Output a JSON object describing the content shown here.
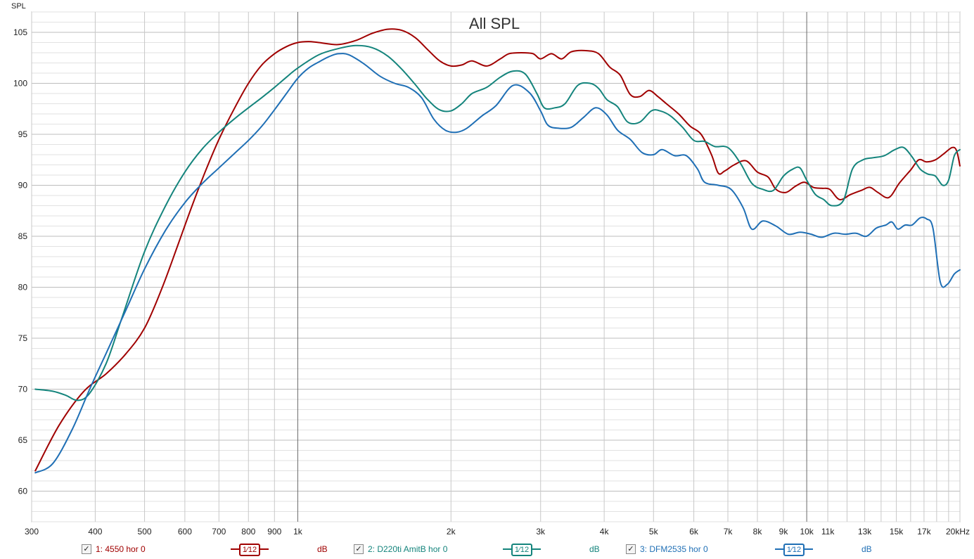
{
  "chart_data": {
    "type": "line",
    "title": "All SPL",
    "ylabel": "SPL",
    "xlabel": "",
    "x_scale": "log",
    "xlim": [
      300,
      20000
    ],
    "ylim": [
      57,
      107
    ],
    "grid": true,
    "y_ticks": [
      {
        "value": 60,
        "label": "60"
      },
      {
        "value": 65,
        "label": "65"
      },
      {
        "value": 70,
        "label": "70"
      },
      {
        "value": 75,
        "label": "75"
      },
      {
        "value": 80,
        "label": "80"
      },
      {
        "value": 85,
        "label": "85"
      },
      {
        "value": 90,
        "label": "90"
      },
      {
        "value": 95,
        "label": "95"
      },
      {
        "value": 100,
        "label": "100"
      },
      {
        "value": 105,
        "label": "105"
      }
    ],
    "x_ticks": [
      {
        "value": 300,
        "label": "300"
      },
      {
        "value": 400,
        "label": "400"
      },
      {
        "value": 500,
        "label": "500"
      },
      {
        "value": 600,
        "label": "600"
      },
      {
        "value": 700,
        "label": "700"
      },
      {
        "value": 800,
        "label": "800"
      },
      {
        "value": 900,
        "label": "900"
      },
      {
        "value": 1000,
        "label": "1k"
      },
      {
        "value": 2000,
        "label": "2k"
      },
      {
        "value": 3000,
        "label": "3k"
      },
      {
        "value": 4000,
        "label": "4k"
      },
      {
        "value": 5000,
        "label": "5k"
      },
      {
        "value": 6000,
        "label": "6k"
      },
      {
        "value": 7000,
        "label": "7k"
      },
      {
        "value": 8000,
        "label": "8k"
      },
      {
        "value": 9000,
        "label": "9k"
      },
      {
        "value": 10000,
        "label": "10k"
      },
      {
        "value": 11000,
        "label": "11k",
        "muted": true
      },
      {
        "value": 13000,
        "label": "13k",
        "muted": true
      },
      {
        "value": 15000,
        "label": "15k"
      },
      {
        "value": 17000,
        "label": "17k",
        "muted": true
      },
      {
        "value": 20000,
        "label": "20kHz"
      }
    ],
    "series": [
      {
        "name": "1: 4550 hor 0",
        "color": "#a00000",
        "points": [
          [
            305,
            62.0
          ],
          [
            340,
            66.5
          ],
          [
            380,
            69.8
          ],
          [
            420,
            71.5
          ],
          [
            460,
            73.5
          ],
          [
            500,
            76.0
          ],
          [
            540,
            79.8
          ],
          [
            580,
            84.0
          ],
          [
            620,
            88.0
          ],
          [
            660,
            91.5
          ],
          [
            700,
            94.5
          ],
          [
            750,
            97.5
          ],
          [
            800,
            100.0
          ],
          [
            850,
            101.8
          ],
          [
            900,
            102.9
          ],
          [
            950,
            103.6
          ],
          [
            1000,
            104.0
          ],
          [
            1050,
            104.1
          ],
          [
            1100,
            104.0
          ],
          [
            1200,
            103.8
          ],
          [
            1300,
            104.2
          ],
          [
            1400,
            104.9
          ],
          [
            1500,
            105.3
          ],
          [
            1600,
            105.2
          ],
          [
            1700,
            104.5
          ],
          [
            1800,
            103.3
          ],
          [
            1900,
            102.2
          ],
          [
            2000,
            101.7
          ],
          [
            2100,
            101.8
          ],
          [
            2200,
            102.2
          ],
          [
            2350,
            101.7
          ],
          [
            2500,
            102.4
          ],
          [
            2600,
            102.9
          ],
          [
            2750,
            103.0
          ],
          [
            2900,
            102.9
          ],
          [
            3000,
            102.4
          ],
          [
            3150,
            102.9
          ],
          [
            3300,
            102.4
          ],
          [
            3450,
            103.1
          ],
          [
            3700,
            103.2
          ],
          [
            3900,
            102.9
          ],
          [
            4100,
            101.6
          ],
          [
            4300,
            100.8
          ],
          [
            4500,
            98.9
          ],
          [
            4700,
            98.7
          ],
          [
            4900,
            99.3
          ],
          [
            5100,
            98.7
          ],
          [
            5300,
            98.0
          ],
          [
            5600,
            97.0
          ],
          [
            5900,
            95.8
          ],
          [
            6200,
            95.0
          ],
          [
            6500,
            93.0
          ],
          [
            6700,
            91.2
          ],
          [
            6900,
            91.4
          ],
          [
            7200,
            92.0
          ],
          [
            7600,
            92.4
          ],
          [
            8000,
            91.3
          ],
          [
            8400,
            90.8
          ],
          [
            8700,
            89.6
          ],
          [
            9100,
            89.3
          ],
          [
            9500,
            89.9
          ],
          [
            9900,
            90.3
          ],
          [
            10300,
            89.8
          ],
          [
            10700,
            89.7
          ],
          [
            11100,
            89.6
          ],
          [
            11600,
            88.6
          ],
          [
            12200,
            89.1
          ],
          [
            12800,
            89.5
          ],
          [
            13300,
            89.8
          ],
          [
            13800,
            89.3
          ],
          [
            14500,
            88.8
          ],
          [
            15200,
            90.2
          ],
          [
            16000,
            91.5
          ],
          [
            16600,
            92.5
          ],
          [
            17200,
            92.3
          ],
          [
            17900,
            92.5
          ],
          [
            18600,
            93.1
          ],
          [
            19300,
            93.7
          ],
          [
            19700,
            93.4
          ],
          [
            20000,
            91.9
          ]
        ]
      },
      {
        "name": "2: D220ti AmitB hor 0",
        "color": "#14847c",
        "points": [
          [
            305,
            70.0
          ],
          [
            330,
            69.8
          ],
          [
            350,
            69.4
          ],
          [
            370,
            68.9
          ],
          [
            390,
            69.6
          ],
          [
            420,
            72.5
          ],
          [
            450,
            76.8
          ],
          [
            500,
            83.5
          ],
          [
            550,
            88.0
          ],
          [
            600,
            91.3
          ],
          [
            650,
            93.6
          ],
          [
            700,
            95.2
          ],
          [
            750,
            96.5
          ],
          [
            800,
            97.6
          ],
          [
            850,
            98.6
          ],
          [
            900,
            99.6
          ],
          [
            950,
            100.6
          ],
          [
            1000,
            101.5
          ],
          [
            1100,
            102.8
          ],
          [
            1200,
            103.4
          ],
          [
            1300,
            103.7
          ],
          [
            1400,
            103.5
          ],
          [
            1500,
            102.7
          ],
          [
            1600,
            101.4
          ],
          [
            1700,
            99.9
          ],
          [
            1800,
            98.4
          ],
          [
            1900,
            97.4
          ],
          [
            2000,
            97.3
          ],
          [
            2100,
            98.0
          ],
          [
            2200,
            99.0
          ],
          [
            2350,
            99.6
          ],
          [
            2500,
            100.6
          ],
          [
            2650,
            101.2
          ],
          [
            2800,
            100.9
          ],
          [
            2950,
            99.0
          ],
          [
            3050,
            97.6
          ],
          [
            3200,
            97.6
          ],
          [
            3350,
            98.0
          ],
          [
            3550,
            99.8
          ],
          [
            3750,
            100.0
          ],
          [
            3900,
            99.5
          ],
          [
            4050,
            98.4
          ],
          [
            4250,
            97.7
          ],
          [
            4450,
            96.2
          ],
          [
            4700,
            96.2
          ],
          [
            4950,
            97.3
          ],
          [
            5150,
            97.3
          ],
          [
            5400,
            96.8
          ],
          [
            5700,
            95.7
          ],
          [
            6000,
            94.4
          ],
          [
            6300,
            94.3
          ],
          [
            6600,
            93.8
          ],
          [
            7000,
            93.7
          ],
          [
            7400,
            92.2
          ],
          [
            7800,
            90.2
          ],
          [
            8200,
            89.6
          ],
          [
            8600,
            89.5
          ],
          [
            9000,
            90.9
          ],
          [
            9400,
            91.6
          ],
          [
            9700,
            91.7
          ],
          [
            10000,
            90.5
          ],
          [
            10400,
            89.1
          ],
          [
            10800,
            88.6
          ],
          [
            11200,
            88.0
          ],
          [
            11800,
            88.5
          ],
          [
            12300,
            91.6
          ],
          [
            12900,
            92.5
          ],
          [
            13500,
            92.7
          ],
          [
            14200,
            92.9
          ],
          [
            14900,
            93.5
          ],
          [
            15500,
            93.7
          ],
          [
            16100,
            92.8
          ],
          [
            16700,
            91.6
          ],
          [
            17300,
            91.1
          ],
          [
            17900,
            90.9
          ],
          [
            18500,
            90.0
          ],
          [
            19000,
            90.5
          ],
          [
            19500,
            92.9
          ],
          [
            20000,
            93.5
          ]
        ]
      },
      {
        "name": "3: DFM2535 hor 0",
        "color": "#1f6fb5",
        "points": [
          [
            305,
            61.8
          ],
          [
            330,
            62.7
          ],
          [
            360,
            66.0
          ],
          [
            390,
            70.0
          ],
          [
            420,
            73.5
          ],
          [
            460,
            77.8
          ],
          [
            500,
            81.8
          ],
          [
            550,
            85.6
          ],
          [
            600,
            88.3
          ],
          [
            650,
            90.2
          ],
          [
            700,
            91.7
          ],
          [
            750,
            93.1
          ],
          [
            800,
            94.4
          ],
          [
            850,
            95.8
          ],
          [
            900,
            97.4
          ],
          [
            950,
            99.0
          ],
          [
            1000,
            100.5
          ],
          [
            1050,
            101.5
          ],
          [
            1100,
            102.1
          ],
          [
            1150,
            102.6
          ],
          [
            1200,
            102.9
          ],
          [
            1260,
            102.8
          ],
          [
            1350,
            101.9
          ],
          [
            1450,
            100.7
          ],
          [
            1550,
            100.0
          ],
          [
            1650,
            99.6
          ],
          [
            1750,
            98.6
          ],
          [
            1850,
            96.5
          ],
          [
            1950,
            95.4
          ],
          [
            2050,
            95.2
          ],
          [
            2150,
            95.6
          ],
          [
            2300,
            96.8
          ],
          [
            2450,
            97.8
          ],
          [
            2650,
            99.8
          ],
          [
            2850,
            99.1
          ],
          [
            3000,
            97.3
          ],
          [
            3100,
            95.9
          ],
          [
            3250,
            95.6
          ],
          [
            3450,
            95.7
          ],
          [
            3650,
            96.7
          ],
          [
            3850,
            97.6
          ],
          [
            4050,
            96.9
          ],
          [
            4250,
            95.4
          ],
          [
            4500,
            94.5
          ],
          [
            4750,
            93.2
          ],
          [
            5000,
            93.0
          ],
          [
            5200,
            93.5
          ],
          [
            5500,
            92.9
          ],
          [
            5800,
            92.9
          ],
          [
            6100,
            91.6
          ],
          [
            6300,
            90.3
          ],
          [
            6700,
            90.0
          ],
          [
            7100,
            89.6
          ],
          [
            7500,
            87.8
          ],
          [
            7800,
            85.7
          ],
          [
            8200,
            86.5
          ],
          [
            8700,
            86.0
          ],
          [
            9200,
            85.2
          ],
          [
            9700,
            85.4
          ],
          [
            10200,
            85.2
          ],
          [
            10700,
            84.9
          ],
          [
            11300,
            85.3
          ],
          [
            11900,
            85.2
          ],
          [
            12500,
            85.3
          ],
          [
            13100,
            85.0
          ],
          [
            13700,
            85.8
          ],
          [
            14300,
            86.1
          ],
          [
            14700,
            86.4
          ],
          [
            15100,
            85.7
          ],
          [
            15600,
            86.1
          ],
          [
            16100,
            86.1
          ],
          [
            16700,
            86.8
          ],
          [
            17200,
            86.7
          ],
          [
            17700,
            85.8
          ],
          [
            18300,
            80.5
          ],
          [
            18900,
            80.3
          ],
          [
            19500,
            81.3
          ],
          [
            20000,
            81.7
          ]
        ]
      }
    ]
  },
  "legend": [
    {
      "label": "1: 4550 hor 0",
      "smoothing": "1⁄12",
      "unit": "dB",
      "checked": "✓",
      "color": "#a00000"
    },
    {
      "label": "2: D220ti AmitB hor 0",
      "smoothing": "1⁄12",
      "unit": "dB",
      "checked": "✓",
      "color": "#14847c"
    },
    {
      "label": "3: DFM2535 hor 0",
      "smoothing": "1⁄12",
      "unit": "dB",
      "checked": "✓",
      "color": "#1f6fb5"
    }
  ]
}
